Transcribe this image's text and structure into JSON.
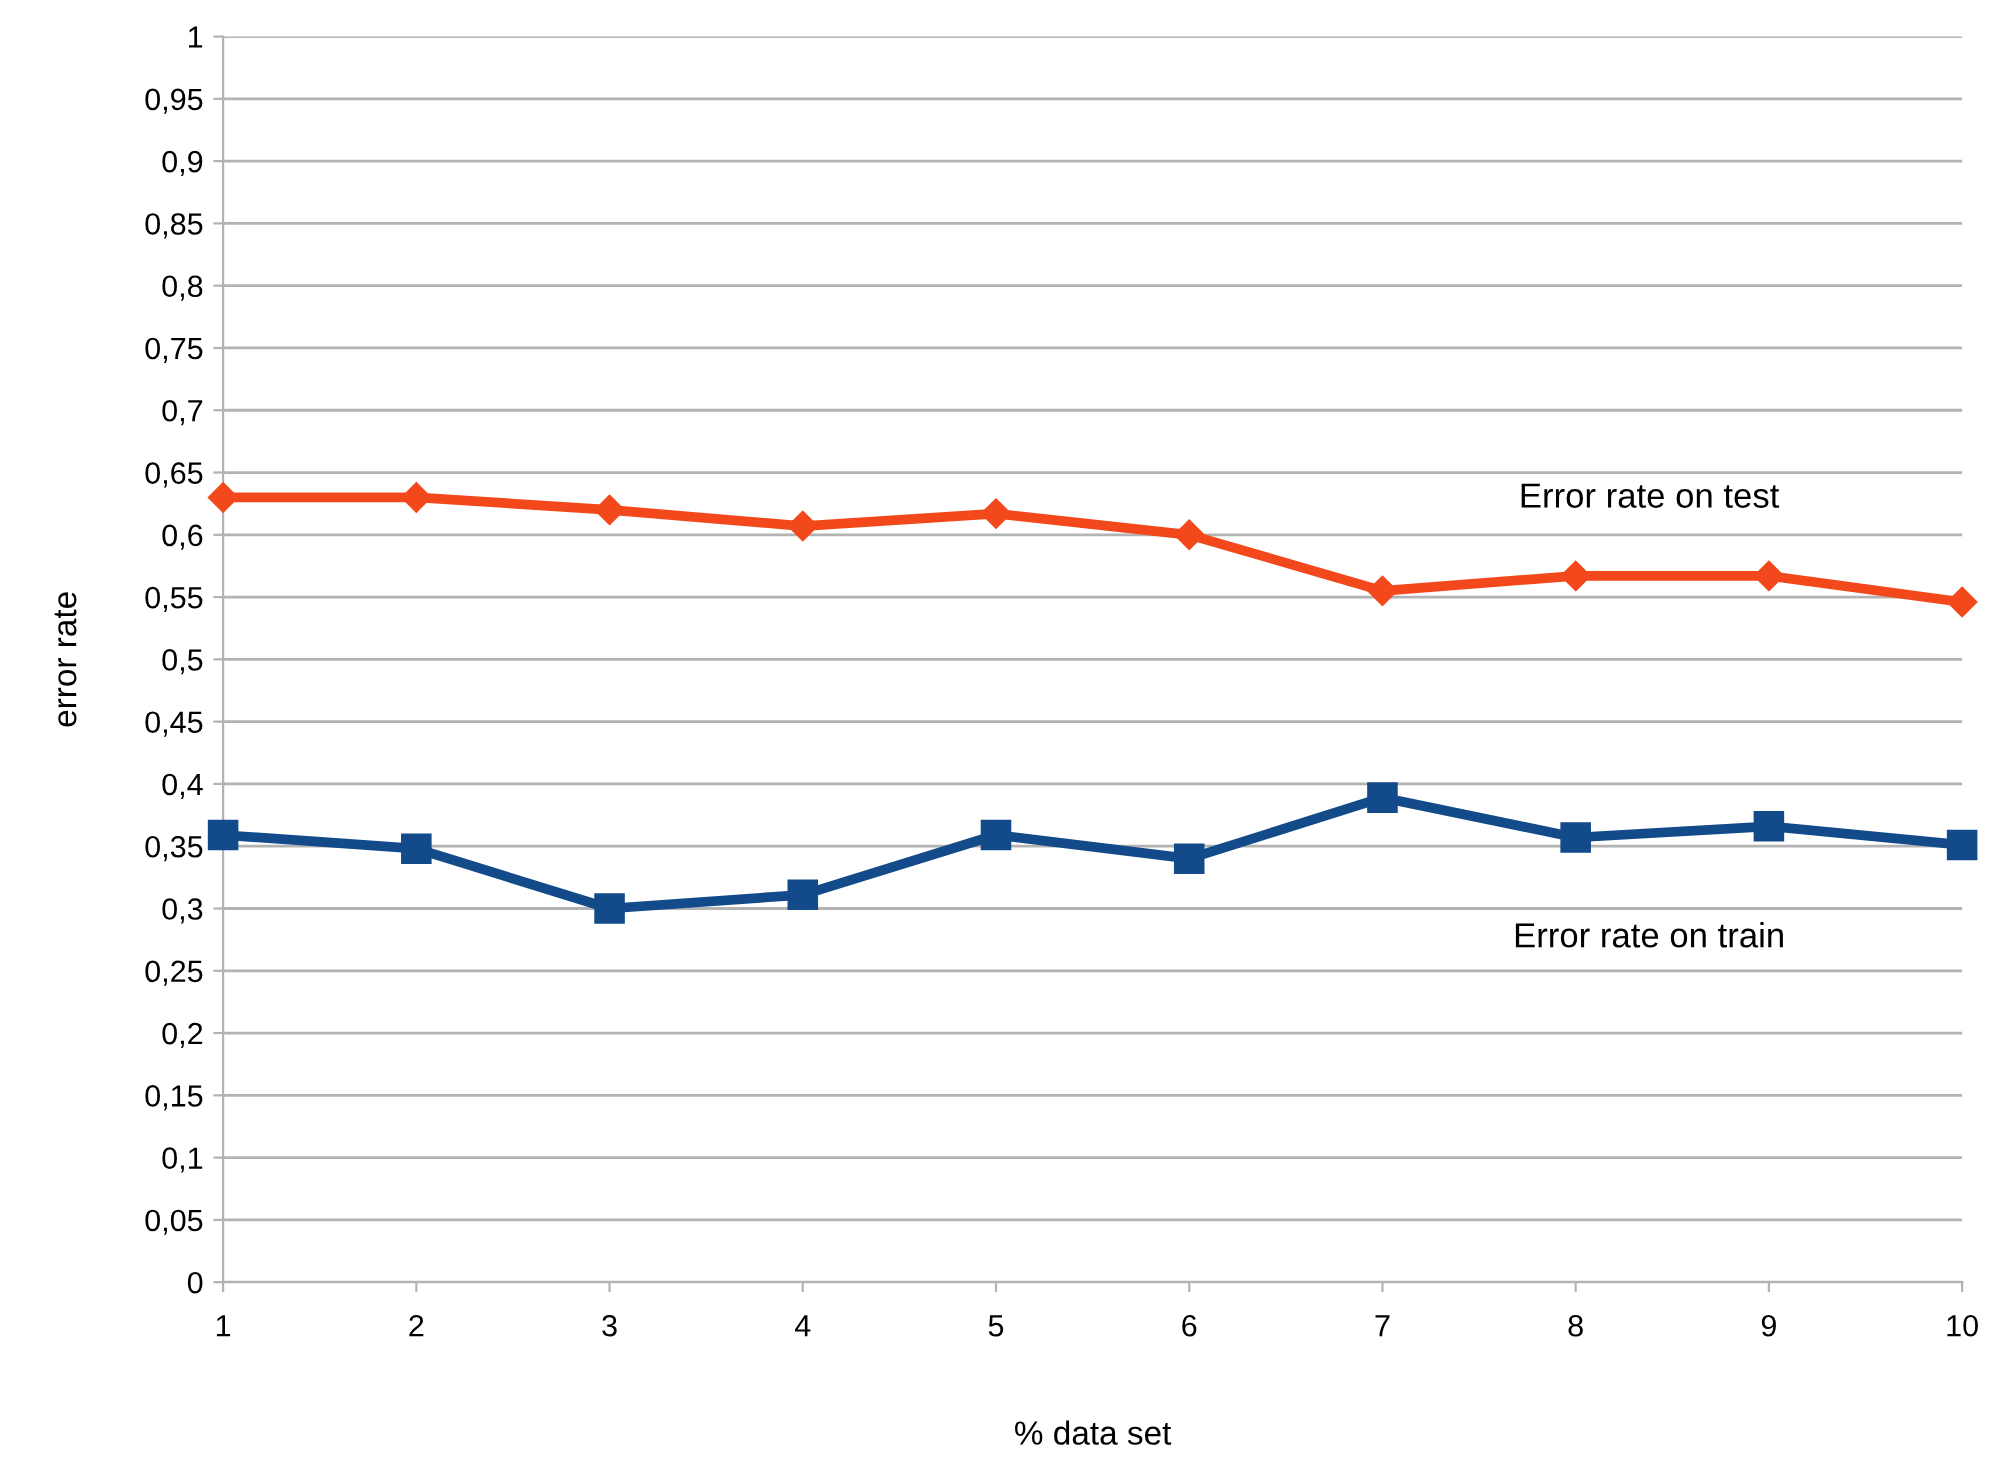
{
  "chart_data": {
    "type": "line",
    "xlabel": "% data set",
    "ylabel": "error rate",
    "x": [
      1,
      2,
      3,
      4,
      5,
      6,
      7,
      8,
      9,
      10
    ],
    "series": [
      {
        "name": "Error rate on test",
        "color": "#f2481b",
        "marker": "diamond",
        "values": [
          0.63,
          0.63,
          0.62,
          0.607,
          0.617,
          0.6,
          0.555,
          0.567,
          0.567,
          0.546
        ]
      },
      {
        "name": "Error rate on train",
        "color": "#134a8a",
        "marker": "square",
        "values": [
          0.359,
          0.348,
          0.3,
          0.311,
          0.359,
          0.34,
          0.389,
          0.357,
          0.366,
          0.351
        ]
      }
    ],
    "xlim": [
      1,
      10
    ],
    "xticks": [
      1,
      2,
      3,
      4,
      5,
      6,
      7,
      8,
      9,
      10
    ],
    "ylim": [
      0,
      1
    ],
    "yticks": [
      {
        "value": 0,
        "label": "0"
      },
      {
        "value": 0.05,
        "label": "0,05"
      },
      {
        "value": 0.1,
        "label": "0,1"
      },
      {
        "value": 0.15,
        "label": "0,15"
      },
      {
        "value": 0.2,
        "label": "0,2"
      },
      {
        "value": 0.25,
        "label": "0,25"
      },
      {
        "value": 0.3,
        "label": "0,3"
      },
      {
        "value": 0.35,
        "label": "0,35"
      },
      {
        "value": 0.4,
        "label": "0,4"
      },
      {
        "value": 0.45,
        "label": "0,45"
      },
      {
        "value": 0.5,
        "label": "0,5"
      },
      {
        "value": 0.55,
        "label": "0,55"
      },
      {
        "value": 0.6,
        "label": "0,6"
      },
      {
        "value": 0.65,
        "label": "0,65"
      },
      {
        "value": 0.7,
        "label": "0,7"
      },
      {
        "value": 0.75,
        "label": "0,75"
      },
      {
        "value": 0.8,
        "label": "0,8"
      },
      {
        "value": 0.85,
        "label": "0,85"
      },
      {
        "value": 0.9,
        "label": "0,9"
      },
      {
        "value": 0.95,
        "label": "0,95"
      },
      {
        "value": 1,
        "label": "1"
      }
    ],
    "grid": "y",
    "line_style": "solid"
  }
}
